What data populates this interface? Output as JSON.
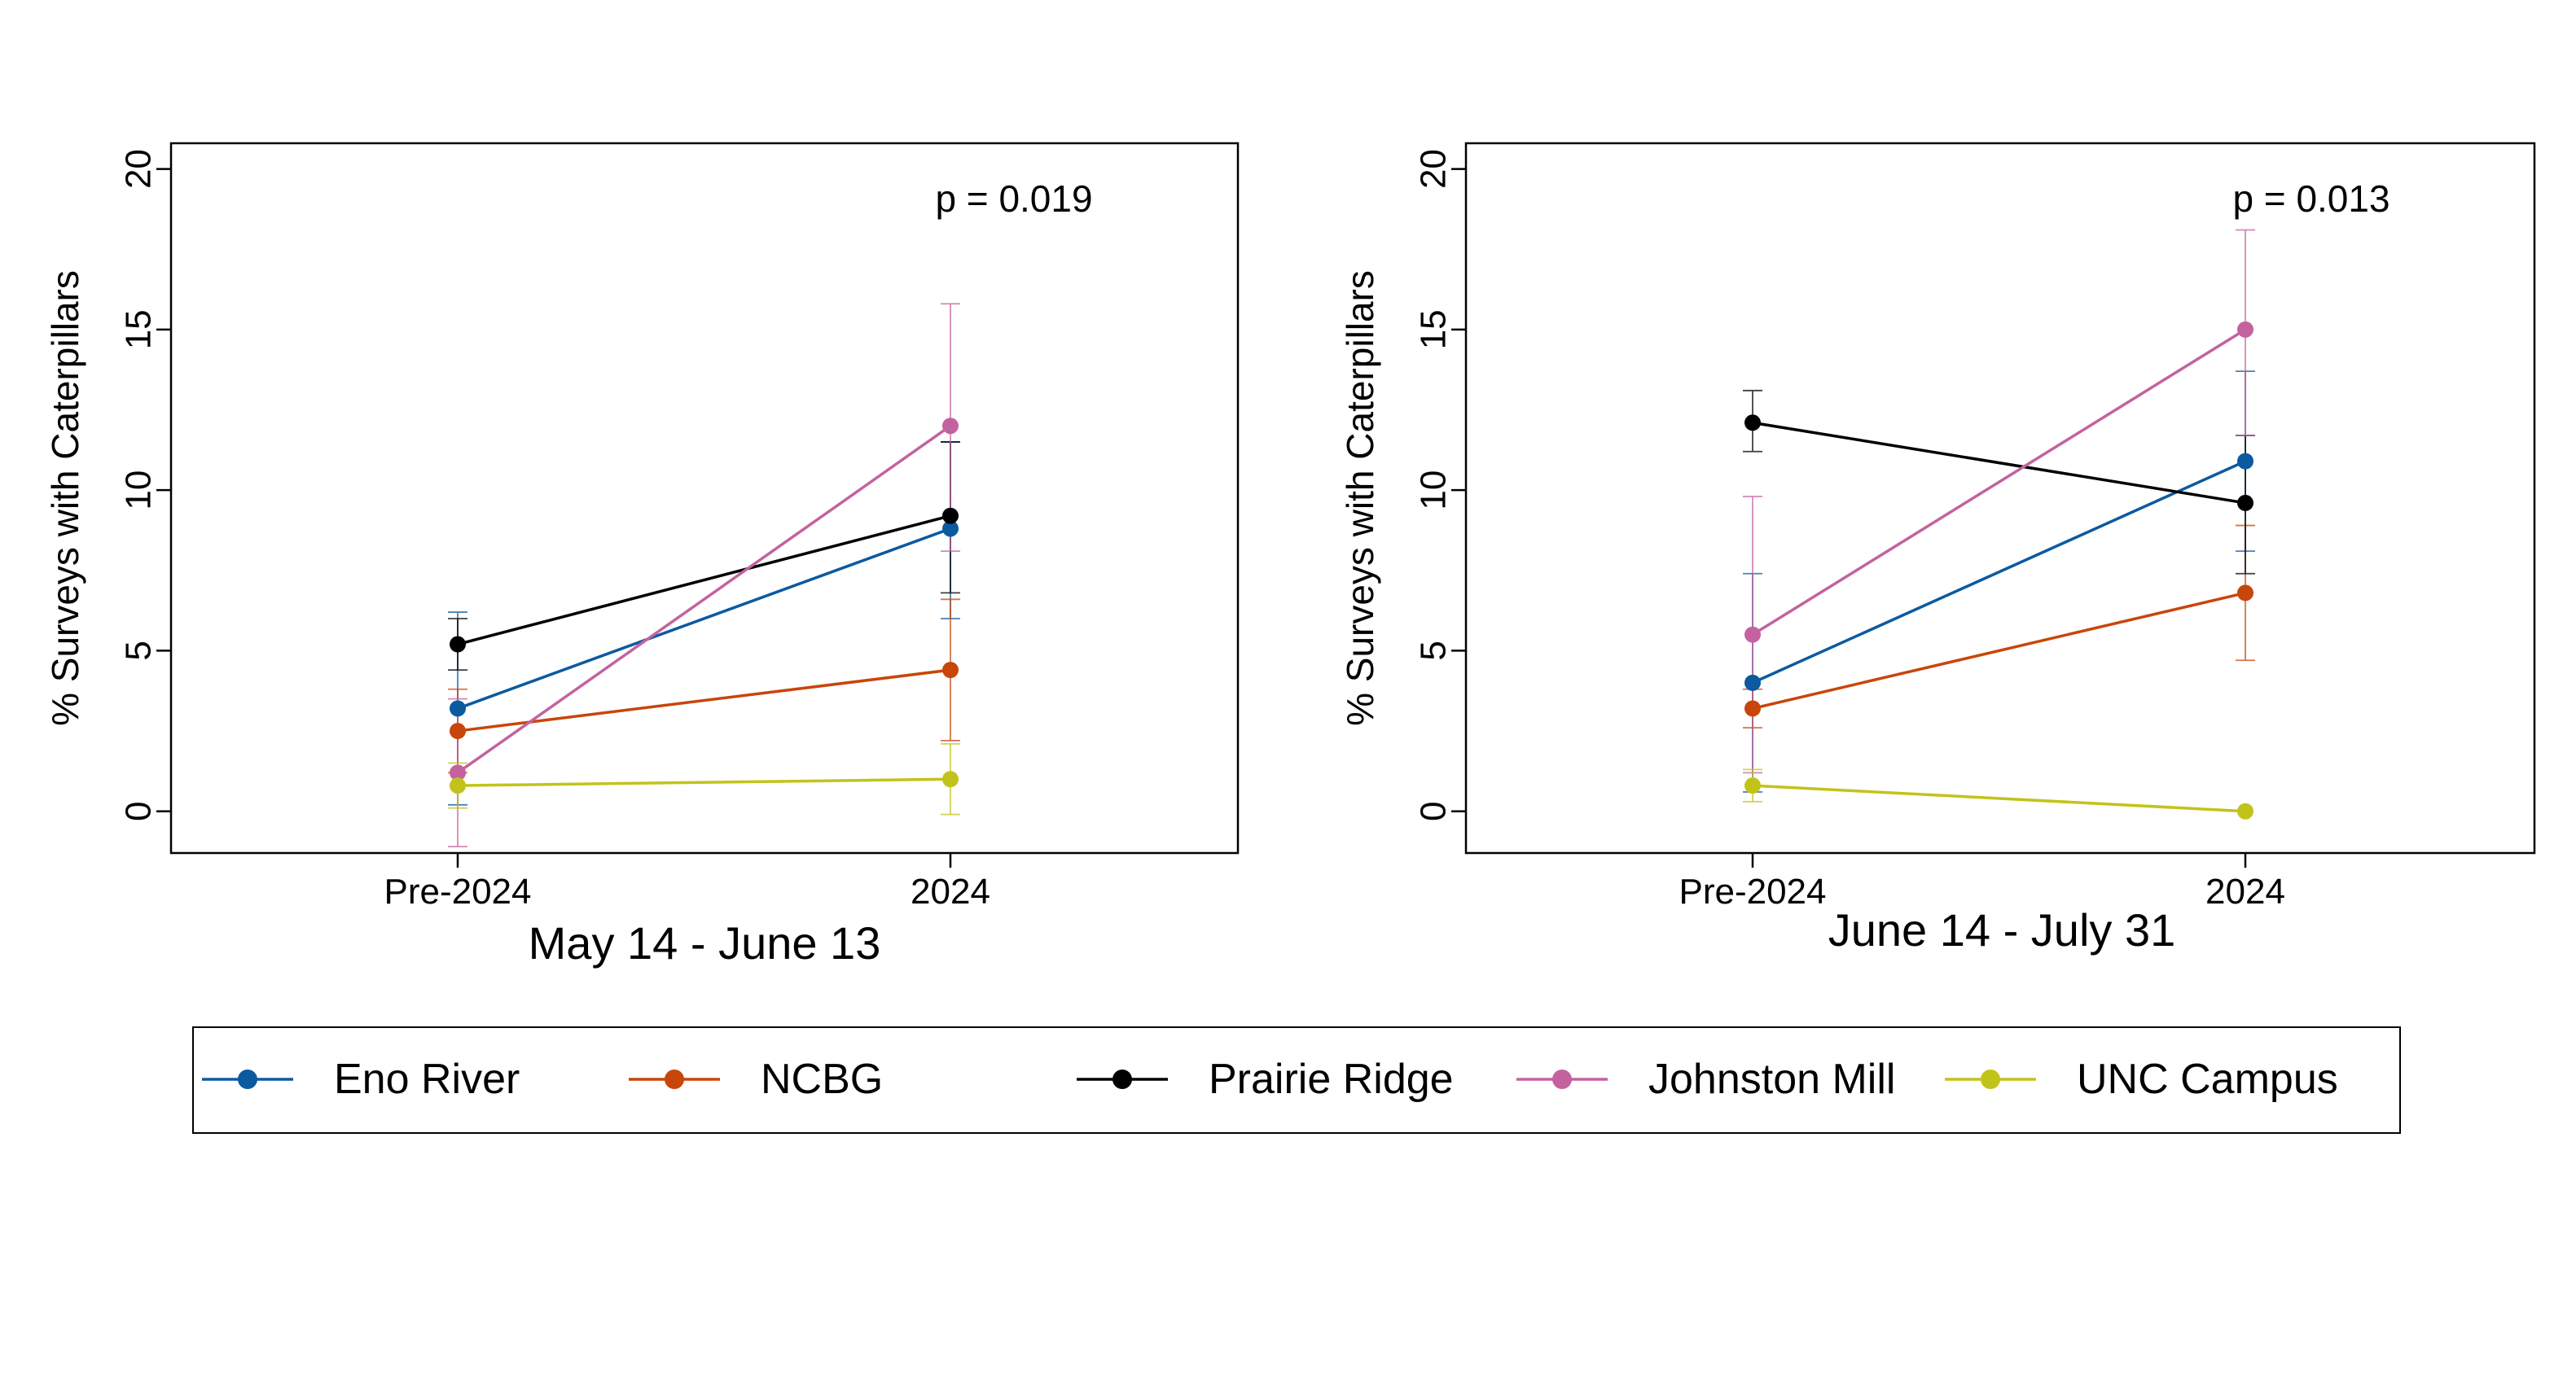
{
  "legend": {
    "items": [
      {
        "label": "Eno River",
        "color": "#0b5aa0"
      },
      {
        "label": "NCBG",
        "color": "#c8460a"
      },
      {
        "label": "Prairie Ridge",
        "color": "#000000"
      },
      {
        "label": "Johnston Mill",
        "color": "#c462a0"
      },
      {
        "label": "UNC Campus",
        "color": "#c2c31a"
      }
    ]
  },
  "chart_data": [
    {
      "type": "line",
      "title": "May 14 - June 13",
      "ylabel": "% Surveys with Caterpillars",
      "annotation": "p = 0.019",
      "categories": [
        "Pre-2024",
        "2024"
      ],
      "ylim": [
        -1.3,
        20.8
      ],
      "yticks": [
        0,
        5,
        10,
        15,
        20
      ],
      "series": [
        {
          "name": "Eno River",
          "color": "#0b5aa0",
          "values": [
            3.2,
            8.8
          ],
          "err_low": [
            0.2,
            6.0
          ],
          "err_high": [
            6.2,
            11.5
          ]
        },
        {
          "name": "NCBG",
          "color": "#c8460a",
          "values": [
            2.5,
            4.4
          ],
          "err_low": [
            1.2,
            2.2
          ],
          "err_high": [
            3.8,
            6.6
          ]
        },
        {
          "name": "Prairie Ridge",
          "color": "#000000",
          "values": [
            5.2,
            9.2
          ],
          "err_low": [
            4.4,
            6.8
          ],
          "err_high": [
            6.0,
            11.5
          ]
        },
        {
          "name": "Johnston Mill",
          "color": "#c462a0",
          "values": [
            1.2,
            12.0
          ],
          "err_low": [
            -1.1,
            8.1
          ],
          "err_high": [
            3.5,
            15.8
          ]
        },
        {
          "name": "UNC Campus",
          "color": "#c2c31a",
          "values": [
            0.8,
            1.0
          ],
          "err_low": [
            0.1,
            -0.1
          ],
          "err_high": [
            1.5,
            2.1
          ]
        }
      ]
    },
    {
      "type": "line",
      "title": "June 14 - July 31",
      "ylabel": "% Surveys with Caterpillars",
      "annotation": "p = 0.013",
      "categories": [
        "Pre-2024",
        "2024"
      ],
      "ylim": [
        -1.3,
        20.8
      ],
      "yticks": [
        0,
        5,
        10,
        15,
        20
      ],
      "series": [
        {
          "name": "Eno River",
          "color": "#0b5aa0",
          "values": [
            4.0,
            10.9
          ],
          "err_low": [
            0.6,
            8.1
          ],
          "err_high": [
            7.4,
            13.7
          ]
        },
        {
          "name": "NCBG",
          "color": "#c8460a",
          "values": [
            3.2,
            6.8
          ],
          "err_low": [
            2.6,
            4.7
          ],
          "err_high": [
            3.8,
            8.9
          ]
        },
        {
          "name": "Prairie Ridge",
          "color": "#000000",
          "values": [
            12.1,
            9.6
          ],
          "err_low": [
            11.2,
            7.4
          ],
          "err_high": [
            13.1,
            11.7
          ]
        },
        {
          "name": "Johnston Mill",
          "color": "#c462a0",
          "values": [
            5.5,
            15.0
          ],
          "err_low": [
            1.2,
            11.7
          ],
          "err_high": [
            9.8,
            18.1
          ]
        },
        {
          "name": "UNC Campus",
          "color": "#c2c31a",
          "values": [
            0.8,
            0.0
          ],
          "err_low": [
            0.3,
            0.0
          ],
          "err_high": [
            1.3,
            0.0
          ]
        }
      ]
    }
  ]
}
